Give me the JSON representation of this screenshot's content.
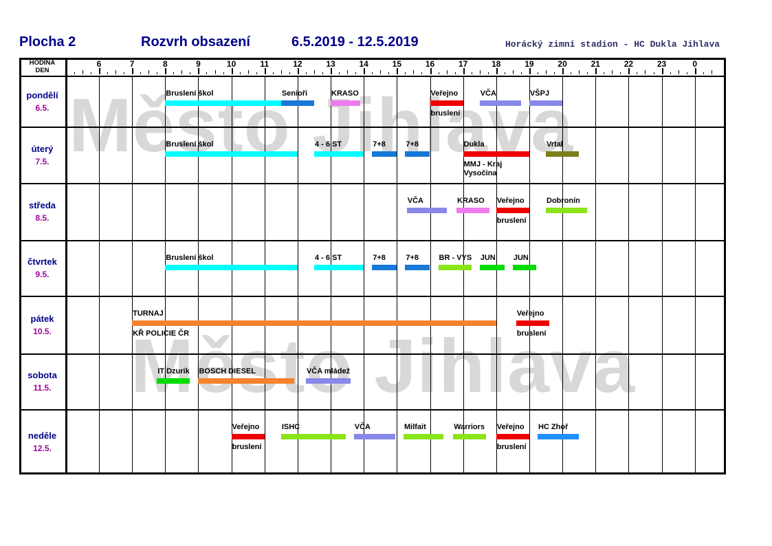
{
  "header": {
    "rink": "Plocha 2",
    "schedule_title": "Rozvrh obsazení",
    "date_range": "6.5.2019 - 12.5.2019",
    "stadium": "Horácký zimní stadion - HC Dukla Jihlava"
  },
  "watermark": {
    "text": "Město Jihlava"
  },
  "grid": {
    "corner_line1": "HODINA",
    "corner_line2": "DEN",
    "hours": [
      "6",
      "7",
      "8",
      "9",
      "10",
      "11",
      "12",
      "13",
      "14",
      "15",
      "16",
      "17",
      "18",
      "19",
      "20",
      "21",
      "22",
      "23",
      "0"
    ]
  },
  "colors": {
    "cyan": "#00FFFF",
    "blue": "#1778D8",
    "pink": "#EE7AEE",
    "periwinkle": "#8888E8",
    "red": "#EE0000",
    "olive": "#7E7E1C",
    "orange": "#F5822D",
    "yellowgreen": "#8BE417",
    "green": "#00DC00",
    "hcblue": "#1E90FF",
    "title_navy": "#00008B",
    "date_purple": "#A000A0",
    "watermark_gray": "#D8D8D8"
  },
  "days": [
    {
      "name": "pondělí",
      "date": "6.5.",
      "events": [
        {
          "label": "Bruslení škol",
          "start": 8.0,
          "end": 11.5,
          "color": "cyan"
        },
        {
          "label": "Senioři",
          "start": 11.5,
          "end": 12.5,
          "color": "blue"
        },
        {
          "label": "KRASO",
          "start": 13.0,
          "end": 13.9,
          "color": "pink"
        },
        {
          "label": "Veřejno",
          "sub": "bruslení",
          "start": 16.0,
          "end": 17.0,
          "color": "red"
        },
        {
          "label": "VČA",
          "start": 17.5,
          "end": 18.75,
          "color": "periwinkle"
        },
        {
          "label": "VŠPJ",
          "start": 19.0,
          "end": 20.0,
          "color": "periwinkle"
        }
      ]
    },
    {
      "name": "úterý",
      "date": "7.5.",
      "events": [
        {
          "label": "Bruslení škol",
          "start": 8.0,
          "end": 12.0,
          "color": "cyan"
        },
        {
          "label": "4 - 6 ST",
          "start": 12.5,
          "end": 14.0,
          "color": "cyan"
        },
        {
          "label": "7+8",
          "start": 14.25,
          "end": 15.0,
          "color": "blue"
        },
        {
          "label": "7+8",
          "start": 15.25,
          "end": 16.0,
          "color": "blue"
        },
        {
          "label": "Dukla",
          "sub": "MMJ - Kraj\nVysočina",
          "start": 17.0,
          "end": 19.0,
          "color": "red"
        },
        {
          "label": "Vrtal",
          "start": 19.5,
          "end": 20.5,
          "color": "olive"
        }
      ]
    },
    {
      "name": "středa",
      "date": "8.5.",
      "events": [
        {
          "label": "VČA",
          "start": 15.3,
          "end": 16.5,
          "color": "periwinkle"
        },
        {
          "label": "KRASO",
          "start": 16.8,
          "end": 17.8,
          "color": "pink"
        },
        {
          "label": "Veřejno",
          "sub": "bruslení",
          "start": 18.0,
          "end": 19.0,
          "color": "red"
        },
        {
          "label": "Dobronín",
          "start": 19.5,
          "end": 20.75,
          "color": "yellowgreen"
        }
      ]
    },
    {
      "name": "čtvrtek",
      "date": "9.5.",
      "events": [
        {
          "label": "Bruslení škol",
          "start": 8.0,
          "end": 12.0,
          "color": "cyan"
        },
        {
          "label": "4 - 6 ST",
          "start": 12.5,
          "end": 14.0,
          "color": "cyan"
        },
        {
          "label": "7+8",
          "start": 14.25,
          "end": 15.0,
          "color": "blue"
        },
        {
          "label": "7+8",
          "start": 15.25,
          "end": 16.0,
          "color": "blue"
        },
        {
          "label": "BR - VYS",
          "start": 16.25,
          "end": 17.25,
          "color": "yellowgreen"
        },
        {
          "label": "JUN",
          "start": 17.5,
          "end": 18.25,
          "color": "green"
        },
        {
          "label": "JUN",
          "start": 18.5,
          "end": 19.2,
          "color": "green"
        }
      ]
    },
    {
      "name": "pátek",
      "date": "10.5.",
      "events": [
        {
          "label": "TURNAJ",
          "sub": "KŘ POLICIE ČR",
          "start": 7.0,
          "end": 18.0,
          "color": "orange"
        },
        {
          "label": "Veřejno",
          "sub": "bruslení",
          "start": 18.6,
          "end": 19.6,
          "color": "red"
        }
      ]
    },
    {
      "name": "sobota",
      "date": "11.5.",
      "events": [
        {
          "label": "IT Dzurik",
          "start": 7.75,
          "end": 8.75,
          "color": "green"
        },
        {
          "label": "BOSCH DIESEL",
          "start": 9.0,
          "end": 11.9,
          "color": "orange"
        },
        {
          "label": "VČA mládež",
          "start": 12.25,
          "end": 13.6,
          "color": "periwinkle"
        }
      ]
    },
    {
      "name": "neděle",
      "date": "12.5.",
      "events": [
        {
          "label": "Veřejno",
          "sub": "bruslení",
          "start": 10.0,
          "end": 11.0,
          "color": "red"
        },
        {
          "label": "ISHC",
          "start": 11.5,
          "end": 13.45,
          "color": "yellowgreen"
        },
        {
          "label": "VČA",
          "start": 13.7,
          "end": 14.95,
          "color": "periwinkle"
        },
        {
          "label": "Milfait",
          "start": 15.2,
          "end": 16.4,
          "color": "yellowgreen"
        },
        {
          "label": "Warriors",
          "start": 16.7,
          "end": 17.7,
          "color": "yellowgreen"
        },
        {
          "label": "Veřejno",
          "sub": "bruslení",
          "start": 18.0,
          "end": 19.0,
          "color": "red"
        },
        {
          "label": "HC Zhoř",
          "start": 19.25,
          "end": 20.5,
          "color": "hcblue"
        }
      ]
    }
  ]
}
